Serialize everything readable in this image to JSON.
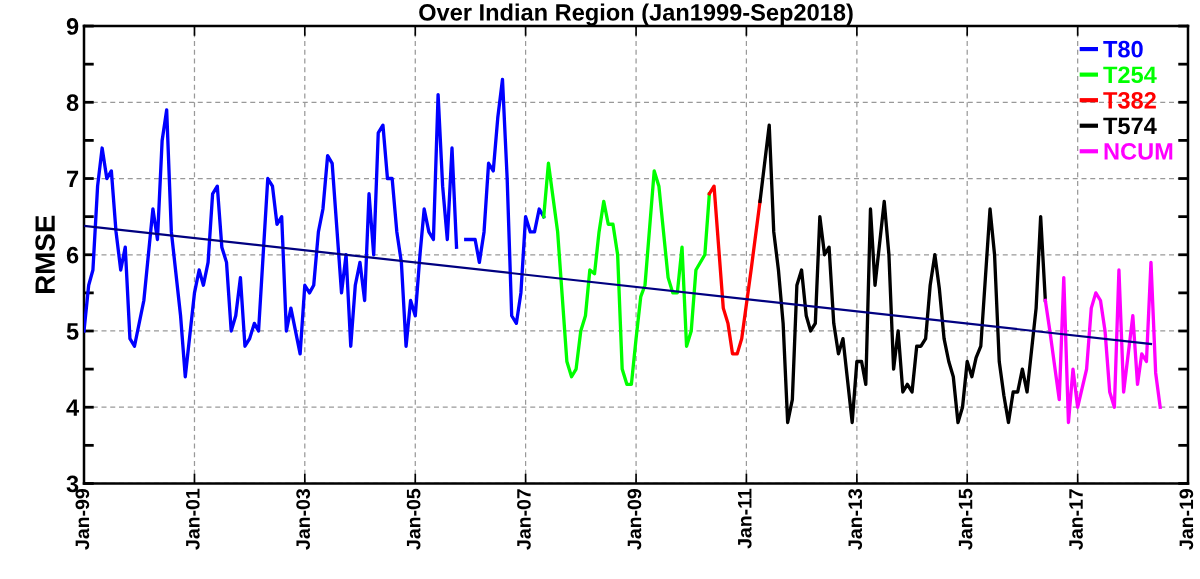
{
  "chart_data": {
    "type": "line",
    "title": "Over Indian Region (Jan1999-Sep2018)",
    "ylabel": "RMSE",
    "xlim": [
      "1999-01",
      "2019-01"
    ],
    "xticks": [
      {
        "value": "1999-01",
        "label": "Jan-99"
      },
      {
        "value": "2001-01",
        "label": "Jan-01"
      },
      {
        "value": "2003-01",
        "label": "Jan-03"
      },
      {
        "value": "2005-01",
        "label": "Jan-05"
      },
      {
        "value": "2007-01",
        "label": "Jan-07"
      },
      {
        "value": "2009-01",
        "label": "Jan-09"
      },
      {
        "value": "2011-01",
        "label": "Jan-11"
      },
      {
        "value": "2013-01",
        "label": "Jan-13"
      },
      {
        "value": "2015-01",
        "label": "Jan-15"
      },
      {
        "value": "2017-01",
        "label": "Jan-17"
      },
      {
        "value": "2019-01",
        "label": "Jan-19"
      }
    ],
    "ylim": [
      3,
      9
    ],
    "yticks": [
      3,
      4,
      5,
      6,
      7,
      8,
      9
    ],
    "grid": true,
    "legend": "top right",
    "line_style": "solid",
    "marker": "none",
    "series": [
      {
        "name": "T80",
        "color": "#0000ff",
        "x": [
          "1999-01",
          "1999-02",
          "1999-03",
          "1999-04",
          "1999-05",
          "1999-06",
          "1999-07",
          "1999-08",
          "1999-09",
          "1999-10",
          "1999-11",
          "1999-12",
          "2000-02",
          "2000-04",
          "2000-05",
          "2000-06",
          "2000-07",
          "2000-08",
          "2000-10",
          "2000-11",
          "2001-01",
          "2001-02",
          "2001-03",
          "2001-04",
          "2001-05",
          "2001-06",
          "2001-07",
          "2001-08",
          "2001-09",
          "2001-10",
          "2001-11",
          "2001-12",
          "2002-01",
          "2002-02",
          "2002-03",
          "2002-05",
          "2002-06",
          "2002-07",
          "2002-08",
          "2002-09",
          "2002-10",
          "2002-12",
          "2003-01",
          "2003-02",
          "2003-03",
          "2003-04",
          "2003-05",
          "2003-06",
          "2003-07",
          "2003-09",
          "2003-10",
          "2003-11",
          "2003-12",
          "2004-01",
          "2004-02",
          "2004-03",
          "2004-04",
          "2004-05",
          "2004-06",
          "2004-07",
          "2004-08",
          "2004-09",
          "2004-10",
          "2004-11",
          "2004-12",
          "2005-01",
          "2005-02",
          "2005-03",
          "2005-04",
          "2005-05",
          "2005-06",
          "2005-07",
          "2005-08",
          "2005-09",
          "2005-10",
          "2005-11",
          "2005-12",
          "2006-01",
          "2006-02",
          "2006-03",
          "2006-04",
          "2006-05",
          "2006-06",
          "2006-07",
          "2006-08",
          "2006-09",
          "2006-10",
          "2006-11",
          "2006-12",
          "2007-01",
          "2007-02",
          "2007-03",
          "2007-04",
          "2007-05"
        ],
        "values": [
          5.0,
          5.6,
          5.8,
          6.9,
          7.4,
          7.0,
          7.1,
          6.3,
          5.8,
          6.1,
          4.9,
          4.8,
          5.4,
          6.6,
          6.2,
          7.5,
          7.9,
          6.3,
          5.2,
          4.4,
          5.5,
          5.8,
          5.6,
          5.9,
          6.8,
          6.9,
          6.1,
          5.9,
          5.0,
          5.2,
          5.7,
          4.8,
          4.9,
          5.1,
          5.0,
          7.0,
          6.9,
          6.4,
          6.5,
          5.0,
          5.3,
          4.7,
          5.6,
          5.5,
          5.6,
          6.3,
          6.6,
          7.3,
          7.2,
          5.5,
          6.0,
          4.8,
          5.6,
          5.9,
          5.4,
          6.8,
          6.0,
          7.6,
          7.7,
          7.0,
          7.0,
          6.3,
          5.9,
          4.8,
          5.4,
          5.2,
          6.0,
          6.6,
          6.3,
          6.2,
          8.1,
          6.9,
          6.2,
          7.4,
          6.1,
          null,
          6.2,
          6.2,
          6.2,
          5.9,
          6.3,
          7.2,
          7.1,
          7.8,
          8.3,
          7.0,
          5.2,
          5.1,
          5.5,
          6.5,
          6.3,
          6.3,
          6.6,
          6.5
        ]
      },
      {
        "name": "T254",
        "color": "#00ff00",
        "x": [
          "2007-05",
          "2007-06",
          "2007-08",
          "2007-10",
          "2007-11",
          "2007-12",
          "2008-01",
          "2008-02",
          "2008-03",
          "2008-04",
          "2008-05",
          "2008-06",
          "2008-07",
          "2008-08",
          "2008-09",
          "2008-10",
          "2008-11",
          "2008-12",
          "2009-01",
          "2009-02",
          "2009-03",
          "2009-05",
          "2009-06",
          "2009-08",
          "2009-09",
          "2009-10",
          "2009-11",
          "2009-12",
          "2010-01",
          "2010-02",
          "2010-04",
          "2010-05"
        ],
        "values": [
          6.5,
          7.2,
          6.3,
          4.6,
          4.4,
          4.5,
          5.0,
          5.2,
          5.8,
          5.75,
          6.3,
          6.7,
          6.4,
          6.4,
          6.0,
          4.5,
          4.3,
          4.3,
          4.9,
          5.45,
          5.6,
          7.1,
          6.9,
          5.7,
          5.5,
          5.5,
          6.1,
          4.8,
          5.0,
          5.8,
          6.0,
          6.8
        ]
      },
      {
        "name": "T382",
        "color": "#ff0000",
        "x": [
          "2010-05",
          "2010-06",
          "2010-08",
          "2010-09",
          "2010-10",
          "2010-11",
          "2010-12",
          "2011-02",
          "2011-04"
        ],
        "values": [
          6.8,
          6.9,
          5.3,
          5.1,
          4.7,
          4.7,
          4.9,
          5.8,
          6.7
        ]
      },
      {
        "name": "T574",
        "color": "#000000",
        "x": [
          "2011-04",
          "2011-06",
          "2011-07",
          "2011-08",
          "2011-09",
          "2011-10",
          "2011-11",
          "2011-12",
          "2012-01",
          "2012-02",
          "2012-03",
          "2012-04",
          "2012-05",
          "2012-06",
          "2012-07",
          "2012-08",
          "2012-09",
          "2012-10",
          "2012-12",
          "2013-01",
          "2013-02",
          "2013-03",
          "2013-04",
          "2013-05",
          "2013-07",
          "2013-08",
          "2013-09",
          "2013-10",
          "2013-11",
          "2013-12",
          "2014-01",
          "2014-02",
          "2014-03",
          "2014-04",
          "2014-05",
          "2014-06",
          "2014-07",
          "2014-08",
          "2014-09",
          "2014-10",
          "2014-11",
          "2014-12",
          "2015-01",
          "2015-02",
          "2015-03",
          "2015-04",
          "2015-06",
          "2015-07",
          "2015-08",
          "2015-09",
          "2015-10",
          "2015-11",
          "2015-12",
          "2016-01",
          "2016-02",
          "2016-04",
          "2016-05",
          "2016-06"
        ],
        "values": [
          6.7,
          7.7,
          6.3,
          5.8,
          5.1,
          3.8,
          4.1,
          5.6,
          5.8,
          5.2,
          5.0,
          5.1,
          6.5,
          6.0,
          6.1,
          5.1,
          4.7,
          4.9,
          3.8,
          4.6,
          4.6,
          4.3,
          6.6,
          5.6,
          6.7,
          6.0,
          4.5,
          5.0,
          4.2,
          4.3,
          4.2,
          4.8,
          4.8,
          4.9,
          5.6,
          6.0,
          5.55,
          4.9,
          4.6,
          4.4,
          3.8,
          4.0,
          4.6,
          4.4,
          4.65,
          4.8,
          6.6,
          6.0,
          4.6,
          4.15,
          3.8,
          4.2,
          4.2,
          4.5,
          4.2,
          5.3,
          6.5,
          5.4
        ]
      },
      {
        "name": "NCUM",
        "color": "#ff00ff",
        "x": [
          "2016-06",
          "2016-07",
          "2016-09",
          "2016-10",
          "2016-11",
          "2016-12",
          "2017-01",
          "2017-03",
          "2017-04",
          "2017-05",
          "2017-06",
          "2017-07",
          "2017-08",
          "2017-09",
          "2017-10",
          "2017-11",
          "2018-01",
          "2018-02",
          "2018-03",
          "2018-04",
          "2018-05",
          "2018-06",
          "2018-07"
        ],
        "values": [
          5.4,
          5.0,
          4.1,
          5.7,
          3.8,
          4.5,
          4.0,
          4.5,
          5.3,
          5.5,
          5.4,
          5.0,
          4.2,
          4.0,
          5.8,
          4.2,
          5.2,
          4.3,
          4.7,
          4.6,
          5.9,
          4.45,
          4.0
        ]
      },
      {
        "color": "#000080",
        "x": [
          "1999-01",
          "2018-05"
        ],
        "values": [
          6.38,
          4.83
        ]
      }
    ]
  }
}
